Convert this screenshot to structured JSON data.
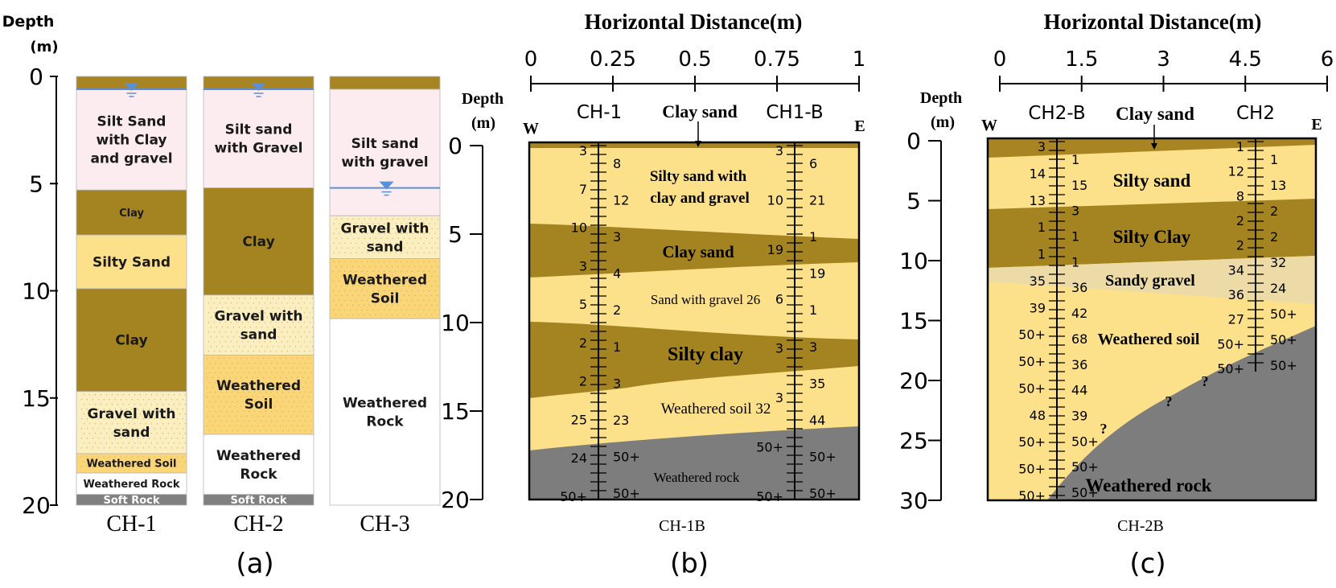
{
  "colors": {
    "top_strip": "#a88522",
    "silt": "#fcecf0",
    "clay": "#a48420",
    "sand": "#fde08a",
    "gravel": "#fbeec0",
    "weathered_soil": "#fbd679",
    "white": "#ffffff",
    "soft_rock": "#808080",
    "water": "#5b8fd6",
    "rock": "#7d7d7d",
    "sandy_gravel": "#ecdba6",
    "clay_sand": "#a88522"
  },
  "panel_a": {
    "depth_label": "Depth",
    "unit_label": "(m)",
    "ticks": [
      "0",
      "5",
      "10",
      "15",
      "20"
    ],
    "columns": [
      {
        "name": "CH-1",
        "water_depth": 0.6,
        "layers": [
          {
            "top": 0,
            "bottom": 0.6,
            "type": "top_strip",
            "label": []
          },
          {
            "top": 0.6,
            "bottom": 5.3,
            "type": "silt",
            "label": [
              "Silt Sand",
              "with Clay",
              "and gravel"
            ]
          },
          {
            "top": 5.3,
            "bottom": 7.4,
            "type": "clay",
            "label": [
              "Clay"
            ]
          },
          {
            "top": 7.4,
            "bottom": 9.9,
            "type": "sand",
            "label": [
              "Silty Sand"
            ]
          },
          {
            "top": 9.9,
            "bottom": 14.7,
            "type": "clay",
            "label": [
              "Clay"
            ]
          },
          {
            "top": 14.7,
            "bottom": 17.6,
            "type": "gravel",
            "label": [
              "Gravel with",
              "sand"
            ]
          },
          {
            "top": 17.6,
            "bottom": 18.5,
            "type": "weathered_soil",
            "label": [
              "Weathered Soil"
            ]
          },
          {
            "top": 18.5,
            "bottom": 19.5,
            "type": "white",
            "label": [
              "Weathered Rock"
            ]
          },
          {
            "top": 19.5,
            "bottom": 20,
            "type": "soft_rock",
            "label": [
              "Soft Rock"
            ]
          }
        ]
      },
      {
        "name": "CH-2",
        "water_depth": 0.6,
        "layers": [
          {
            "top": 0,
            "bottom": 0.6,
            "type": "top_strip",
            "label": []
          },
          {
            "top": 0.6,
            "bottom": 5.2,
            "type": "silt",
            "label": [
              "Silt sand",
              "with Gravel"
            ]
          },
          {
            "top": 5.2,
            "bottom": 10.2,
            "type": "clay",
            "label": [
              "Clay"
            ]
          },
          {
            "top": 10.2,
            "bottom": 13,
            "type": "gravel",
            "label": [
              "Gravel with",
              "sand"
            ]
          },
          {
            "top": 13,
            "bottom": 16.7,
            "type": "weathered_soil",
            "label": [
              "Weathered",
              "Soil"
            ]
          },
          {
            "top": 16.7,
            "bottom": 19.5,
            "type": "white",
            "label": [
              "Weathered",
              "Rock"
            ]
          },
          {
            "top": 19.5,
            "bottom": 20,
            "type": "soft_rock",
            "label": [
              "Soft Rock"
            ]
          }
        ]
      },
      {
        "name": "CH-3",
        "water_depth": 5.2,
        "layers": [
          {
            "top": 0,
            "bottom": 0.6,
            "type": "top_strip",
            "label": []
          },
          {
            "top": 0.6,
            "bottom": 6.5,
            "type": "silt",
            "label": [
              "Silt sand",
              "with gravel"
            ]
          },
          {
            "top": 6.5,
            "bottom": 8.5,
            "type": "gravel",
            "label": [
              "Gravel with",
              "sand"
            ]
          },
          {
            "top": 8.5,
            "bottom": 11.3,
            "type": "weathered_soil",
            "label": [
              "Weathered",
              "Soil"
            ]
          },
          {
            "top": 11.3,
            "bottom": 20,
            "type": "white",
            "label": [
              "Weathered",
              "Rock"
            ]
          }
        ]
      }
    ],
    "caption": "(a)"
  },
  "panel_b": {
    "title": "Horizontal Distance(m)",
    "x_ticks": [
      "0",
      "0.25",
      "0.5",
      "0.75",
      "1"
    ],
    "depth_label": "Depth",
    "unit_label": "(m)",
    "depth_ticks": [
      "0",
      "5",
      "10",
      "15",
      "20"
    ],
    "west": "W",
    "east": "E",
    "borehole_left": "CH-1",
    "borehole_right": "CH1-B",
    "top_label": "Clay sand",
    "layer_labels": [
      "Silty sand with",
      "clay and gravel",
      "Clay sand",
      "Sand with gravel 26",
      "Silty clay",
      "Weathered soil 32",
      "Weathered rock"
    ],
    "n_left_outer": [
      "3",
      "7",
      "10",
      "3",
      "5",
      "2",
      "2",
      "25",
      "24",
      "50+"
    ],
    "n_left_inner": [
      "8",
      "12",
      "3",
      "4",
      "2",
      "1",
      "3",
      "23",
      "50+",
      "50+"
    ],
    "n_right_outer": [
      "3",
      "10",
      "19",
      "6",
      "3",
      "3",
      "50+",
      "50+"
    ],
    "n_right_inner": [
      "6",
      "21",
      "1",
      "19",
      "1",
      "3",
      "35",
      "44",
      "50+",
      "50+"
    ],
    "caption_small": "CH-1B",
    "caption": "(b)"
  },
  "panel_c": {
    "title": "Horizontal Distance(m)",
    "x_ticks": [
      "0",
      "1.5",
      "3",
      "4.5",
      "6"
    ],
    "depth_label": "Depth",
    "unit_label": "(m)",
    "depth_ticks": [
      "0",
      "5",
      "10",
      "15",
      "20",
      "25",
      "30"
    ],
    "west": "W",
    "east": "E",
    "borehole_left": "CH2-B",
    "borehole_right": "CH2",
    "top_label": "Clay sand",
    "layer_labels": [
      "Silty sand",
      "Silty Clay",
      "Sandy gravel",
      "Weathered soil",
      "Weathered rock"
    ],
    "question_marks": [
      "?",
      "?",
      "?"
    ],
    "n_left_outer": [
      "3",
      "14",
      "13",
      "1",
      "1",
      "35",
      "39",
      "50+",
      "50+",
      "50+",
      "48",
      "50+",
      "50+",
      "50+"
    ],
    "n_left_inner": [
      "1",
      "15",
      "3",
      "1",
      "1",
      "36",
      "42",
      "68",
      "36",
      "44",
      "39",
      "50+",
      "50+",
      "50+"
    ],
    "n_right_outer": [
      "1",
      "12",
      "8",
      "2",
      "2",
      "34",
      "36",
      "27",
      "50+",
      "50+"
    ],
    "n_right_inner": [
      "1",
      "13",
      "2",
      "2",
      "32",
      "24",
      "50+",
      "50+",
      "50+"
    ],
    "caption_small": "CH-2B",
    "caption": "(c)"
  }
}
